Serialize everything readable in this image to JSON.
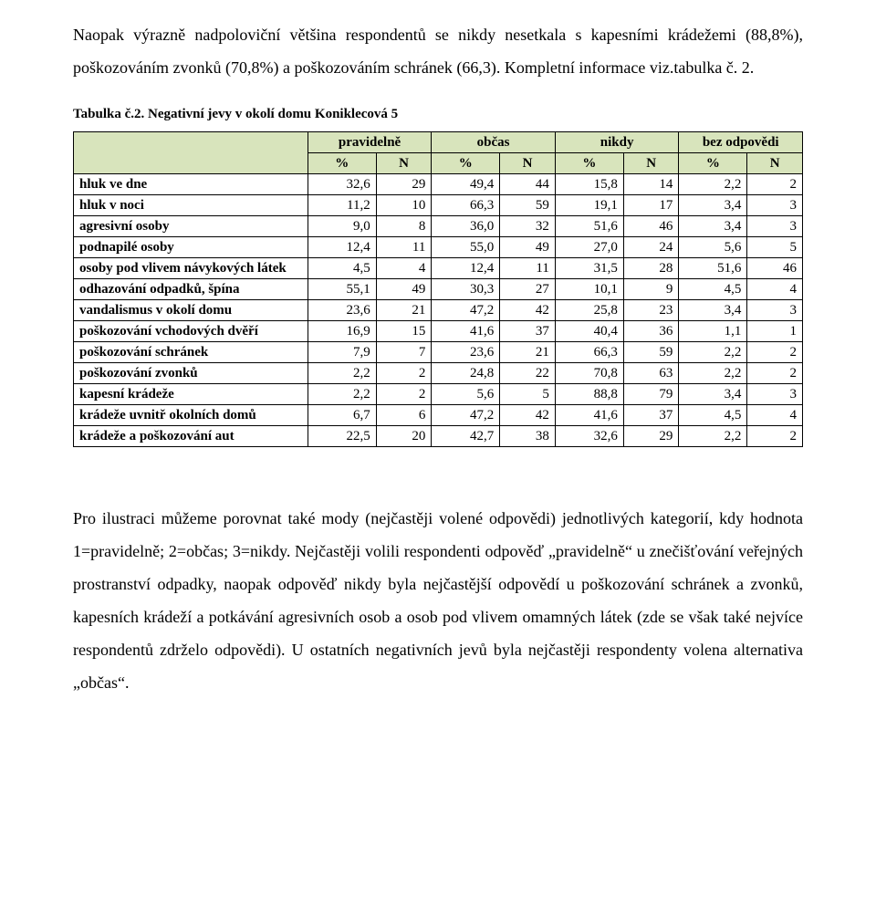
{
  "intro": "Naopak výrazně nadpoloviční většina respondentů se nikdy nesetkala s kapesními krádežemi (88,8%), poškozováním zvonků (70,8%) a poškozováním schránek (66,3). Kompletní informace viz.tabulka č. 2.",
  "table_caption": "Tabulka č.2. Negativní jevy v okolí domu Koniklecová 5",
  "table": {
    "header_bg": "#d8e4bc",
    "border_color": "#000000",
    "col_groups": [
      "pravidelně",
      "občas",
      "nikdy",
      "bez odpovědi"
    ],
    "sub_cols": [
      "%",
      "N"
    ],
    "rows": [
      {
        "label": "hluk ve dne",
        "vals": [
          "32,6",
          "29",
          "49,4",
          "44",
          "15,8",
          "14",
          "2,2",
          "2"
        ]
      },
      {
        "label": "hluk v noci",
        "vals": [
          "11,2",
          "10",
          "66,3",
          "59",
          "19,1",
          "17",
          "3,4",
          "3"
        ]
      },
      {
        "label": "agresivní osoby",
        "vals": [
          "9,0",
          "8",
          "36,0",
          "32",
          "51,6",
          "46",
          "3,4",
          "3"
        ]
      },
      {
        "label": "podnapilé osoby",
        "vals": [
          "12,4",
          "11",
          "55,0",
          "49",
          "27,0",
          "24",
          "5,6",
          "5"
        ]
      },
      {
        "label": "osoby pod vlivem návykových látek",
        "vals": [
          "4,5",
          "4",
          "12,4",
          "11",
          "31,5",
          "28",
          "51,6",
          "46"
        ]
      },
      {
        "label": "odhazování odpadků, špína",
        "vals": [
          "55,1",
          "49",
          "30,3",
          "27",
          "10,1",
          "9",
          "4,5",
          "4"
        ]
      },
      {
        "label": "vandalismus v okolí domu",
        "vals": [
          "23,6",
          "21",
          "47,2",
          "42",
          "25,8",
          "23",
          "3,4",
          "3"
        ]
      },
      {
        "label": "poškozování vchodových dvěří",
        "vals": [
          "16,9",
          "15",
          "41,6",
          "37",
          "40,4",
          "36",
          "1,1",
          "1"
        ]
      },
      {
        "label": "poškozování schránek",
        "vals": [
          "7,9",
          "7",
          "23,6",
          "21",
          "66,3",
          "59",
          "2,2",
          "2"
        ]
      },
      {
        "label": "poškozování zvonků",
        "vals": [
          "2,2",
          "2",
          "24,8",
          "22",
          "70,8",
          "63",
          "2,2",
          "2"
        ]
      },
      {
        "label": "kapesní krádeže",
        "vals": [
          "2,2",
          "2",
          "5,6",
          "5",
          "88,8",
          "79",
          "3,4",
          "3"
        ]
      },
      {
        "label": "krádeže uvnitř okolních domů",
        "vals": [
          "6,7",
          "6",
          "47,2",
          "42",
          "41,6",
          "37",
          "4,5",
          "4"
        ]
      },
      {
        "label": "krádeže a poškozování aut",
        "vals": [
          "22,5",
          "20",
          "42,7",
          "38",
          "32,6",
          "29",
          "2,2",
          "2"
        ]
      }
    ]
  },
  "outro": "Pro ilustraci můžeme porovnat také mody (nejčastěji volené odpovědi) jednotlivých kategorií, kdy hodnota 1=pravidelně; 2=občas; 3=nikdy. Nejčastěji volili respondenti odpověď „pravidelně“ u znečišťování veřejných prostranství odpadky, naopak odpověď nikdy byla nejčastější odpovědí u poškozování schránek a zvonků, kapesních krádeží a potkávání agresivních osob a osob pod vlivem omamných látek (zde se však také nejvíce respondentů zdrželo odpovědi). U ostatních negativních jevů byla nejčastěji respondenty volena alternativa „občas“."
}
